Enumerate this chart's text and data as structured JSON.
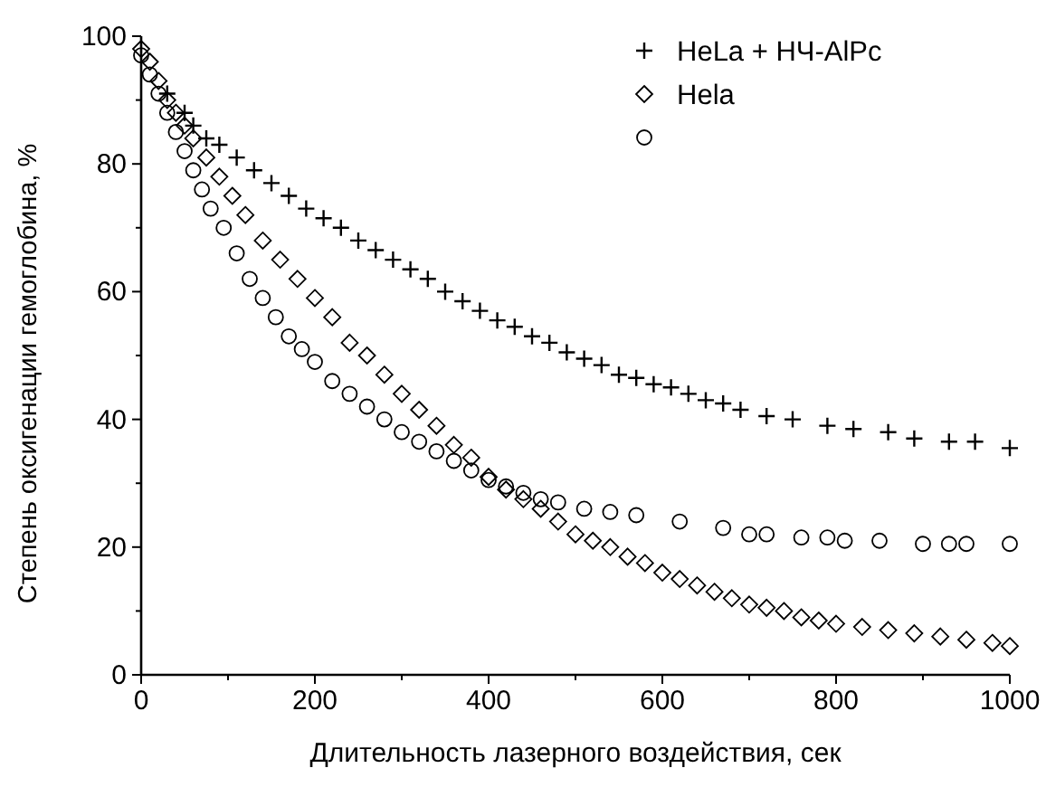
{
  "chart_data": {
    "type": "scatter",
    "xlabel": "Длительность лазерного воздействия, сек",
    "ylabel": "Степень оксигенации гемоглобина, %",
    "xlim": [
      0,
      1000
    ],
    "ylim": [
      0,
      100
    ],
    "xticks": [
      0,
      {
        "value": 100,
        "label": null
      },
      200,
      {
        "value": 300,
        "label": null
      },
      400,
      {
        "value": 500,
        "label": null
      },
      600,
      {
        "value": 700,
        "label": null
      },
      800,
      {
        "value": 900,
        "label": null
      },
      1000
    ],
    "yticks": [
      0,
      {
        "value": 10,
        "label": null
      },
      20,
      {
        "value": 30,
        "label": null
      },
      40,
      {
        "value": 50,
        "label": null
      },
      60,
      {
        "value": 70,
        "label": null
      },
      80,
      {
        "value": 90,
        "label": null
      },
      100
    ],
    "legend": "top right",
    "grid": false,
    "series": [
      {
        "name": "HeLa + НЧ-AlPc",
        "color": "#000000",
        "marker": "cross",
        "x": [
          30,
          50,
          60,
          75,
          90,
          110,
          130,
          150,
          170,
          190,
          210,
          230,
          250,
          270,
          290,
          310,
          330,
          350,
          370,
          390,
          410,
          430,
          450,
          470,
          490,
          510,
          530,
          550,
          570,
          590,
          610,
          630,
          650,
          670,
          690,
          720,
          750,
          790,
          820,
          860,
          890,
          930,
          960,
          1000
        ],
        "values": [
          91,
          88,
          86,
          84,
          83,
          81,
          79,
          77,
          75,
          73,
          71.5,
          70,
          68,
          66.5,
          65,
          63.5,
          62,
          60,
          58.5,
          57,
          55.5,
          54.5,
          53,
          52,
          50.5,
          49.5,
          48.5,
          47,
          46.5,
          45.5,
          45,
          44,
          43,
          42.5,
          41.5,
          40.5,
          40,
          39,
          38.5,
          38,
          37,
          36.5,
          36.5,
          35.5
        ]
      },
      {
        "name": "Hela",
        "color": "#000000",
        "marker": "diamond",
        "x": [
          0,
          10,
          20,
          30,
          40,
          50,
          60,
          75,
          90,
          105,
          120,
          140,
          160,
          180,
          200,
          220,
          240,
          260,
          280,
          300,
          320,
          340,
          360,
          380,
          400,
          420,
          440,
          460,
          480,
          500,
          520,
          540,
          560,
          580,
          600,
          620,
          640,
          660,
          680,
          700,
          720,
          740,
          760,
          780,
          800,
          830,
          860,
          890,
          920,
          950,
          980,
          1000
        ],
        "values": [
          98,
          96,
          93,
          90,
          88,
          86,
          84,
          81,
          78,
          75,
          72,
          68,
          65,
          62,
          59,
          56,
          52,
          50,
          47,
          44,
          41.5,
          39,
          36,
          34,
          31,
          29,
          27.5,
          26,
          24,
          22,
          21,
          20,
          18.5,
          17.5,
          16,
          15,
          14,
          13,
          12,
          11,
          10.5,
          10,
          9,
          8.5,
          8,
          7.5,
          7,
          6.5,
          6,
          5.5,
          5,
          4.5
        ]
      },
      {
        "color": "#000000",
        "marker": "circle",
        "x": [
          0,
          10,
          20,
          30,
          40,
          50,
          60,
          70,
          80,
          95,
          110,
          125,
          140,
          155,
          170,
          185,
          200,
          220,
          240,
          260,
          280,
          300,
          320,
          340,
          360,
          380,
          400,
          420,
          440,
          460,
          480,
          510,
          540,
          570,
          620,
          670,
          700,
          720,
          760,
          790,
          810,
          850,
          900,
          930,
          950,
          1000
        ],
        "values": [
          97,
          94,
          91,
          88,
          85,
          82,
          79,
          76,
          73,
          70,
          66,
          62,
          59,
          56,
          53,
          51,
          49,
          46,
          44,
          42,
          40,
          38,
          36.5,
          35,
          33.5,
          32,
          30.5,
          29.5,
          28.5,
          27.5,
          27,
          26,
          25.5,
          25,
          24,
          23,
          22,
          22,
          21.5,
          21.5,
          21,
          21,
          20.5,
          20.5,
          20.5,
          20.5
        ]
      }
    ]
  }
}
